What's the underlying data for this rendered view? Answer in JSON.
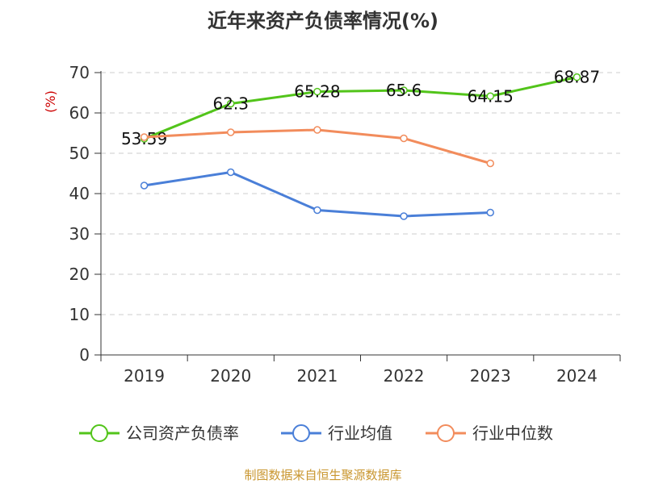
{
  "chart_data": {
    "type": "line",
    "title": "近年来资产负债率情况(%)",
    "ylabel": "(%)",
    "xlabel": "",
    "categories": [
      "2019",
      "2020",
      "2021",
      "2022",
      "2023",
      "2024"
    ],
    "ylim": [
      0,
      70
    ],
    "yticks": [
      0,
      10,
      20,
      30,
      40,
      50,
      60,
      70
    ],
    "grid": true,
    "legend_position": "bottom",
    "series": [
      {
        "name": "公司资产负债率",
        "color": "#52c41a",
        "values": [
          53.59,
          62.3,
          65.28,
          65.6,
          64.15,
          68.87
        ],
        "labels": [
          "53.59",
          "62.3",
          "65.28",
          "65.6",
          "64.15",
          "68.87"
        ]
      },
      {
        "name": "行业均值",
        "color": "#4a7fd8",
        "values": [
          42.0,
          45.3,
          35.9,
          34.4,
          35.3,
          null
        ]
      },
      {
        "name": "行业中位数",
        "color": "#f28c5c",
        "values": [
          54.0,
          55.2,
          55.8,
          53.7,
          47.5,
          null
        ]
      }
    ]
  },
  "source_note": "制图数据来自恒生聚源数据库",
  "colors": {
    "axis": "#333333",
    "grid": "#cccccc",
    "ylabel": "#cc0000",
    "source": "#c9962f"
  }
}
